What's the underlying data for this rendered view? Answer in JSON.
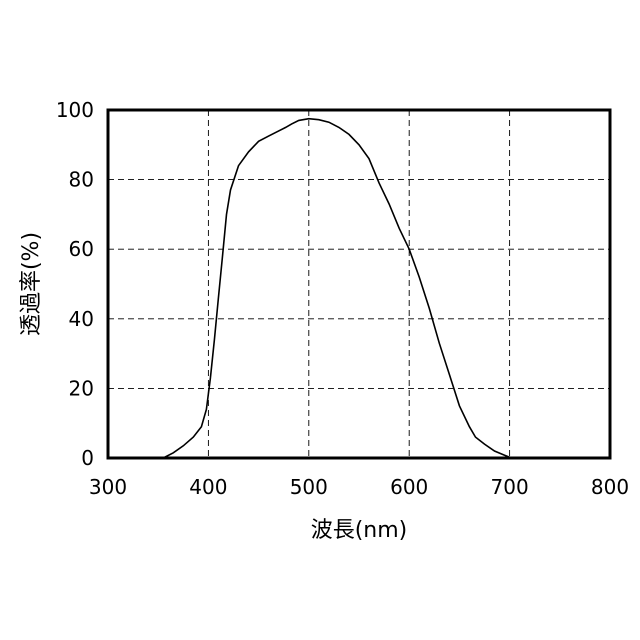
{
  "chart_data": {
    "type": "line",
    "xlabel": "波長(nm)",
    "ylabel": "透過率(%)",
    "xlim": [
      300,
      800
    ],
    "ylim": [
      0,
      100
    ],
    "xticks": [
      300,
      400,
      500,
      600,
      700,
      800
    ],
    "yticks": [
      0,
      20,
      40,
      60,
      80,
      100
    ],
    "x_tick_labels": [
      "300",
      "400",
      "500",
      "600",
      "700",
      "800"
    ],
    "y_tick_labels": [
      "0",
      "20",
      "40",
      "60",
      "80",
      "100"
    ],
    "grid": true,
    "grid_style": "dashed",
    "series": [
      {
        "x": [
          355,
          365,
          375,
          385,
          393,
          398,
          402,
          406,
          410,
          414,
          418,
          422,
          430,
          440,
          450,
          460,
          470,
          477,
          483,
          490,
          500,
          510,
          520,
          530,
          540,
          550,
          560,
          570,
          580,
          590,
          600,
          610,
          620,
          630,
          640,
          650,
          660,
          666,
          675,
          685,
          695,
          700,
          702
        ],
        "y": [
          0,
          1.5,
          3.5,
          6,
          9,
          14,
          23,
          34,
          46,
          58,
          70,
          77,
          84,
          88,
          91,
          92.5,
          94,
          95,
          96,
          97,
          97.5,
          97.2,
          96.5,
          95,
          93,
          90,
          86,
          79,
          73,
          66,
          60,
          52,
          43,
          33,
          24,
          15,
          9,
          6,
          4,
          2,
          0.8,
          0.2,
          0
        ]
      }
    ]
  }
}
